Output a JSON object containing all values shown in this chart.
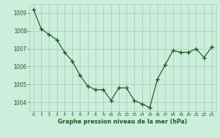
{
  "x": [
    0,
    1,
    2,
    3,
    4,
    5,
    6,
    7,
    8,
    9,
    10,
    11,
    12,
    13,
    14,
    15,
    16,
    17,
    18,
    19,
    20,
    21,
    22,
    23
  ],
  "y": [
    1009.2,
    1008.1,
    1007.8,
    1007.5,
    1006.8,
    1006.3,
    1005.5,
    1004.9,
    1004.7,
    1004.7,
    1004.1,
    1004.8,
    1004.8,
    1004.1,
    1003.9,
    1003.7,
    1005.3,
    1006.1,
    1006.9,
    1006.8,
    1006.8,
    1007.0,
    1006.5,
    1007.1
  ],
  "line_color": "#1a5c1a",
  "marker_color": "#1a5c1a",
  "bg_color": "#cceedd",
  "grid_color": "#aaccbb",
  "xlabel": "Graphe pression niveau de la mer (hPa)",
  "xlabel_color": "#1a5c1a",
  "tick_color": "#1a5c1a",
  "ylim": [
    1003.5,
    1009.5
  ],
  "yticks": [
    1004,
    1005,
    1006,
    1007,
    1008,
    1009
  ],
  "xticks": [
    0,
    1,
    2,
    3,
    4,
    5,
    6,
    7,
    8,
    9,
    10,
    11,
    12,
    13,
    14,
    15,
    16,
    17,
    18,
    19,
    20,
    21,
    22,
    23
  ],
  "xlim": [
    -0.5,
    23.5
  ]
}
